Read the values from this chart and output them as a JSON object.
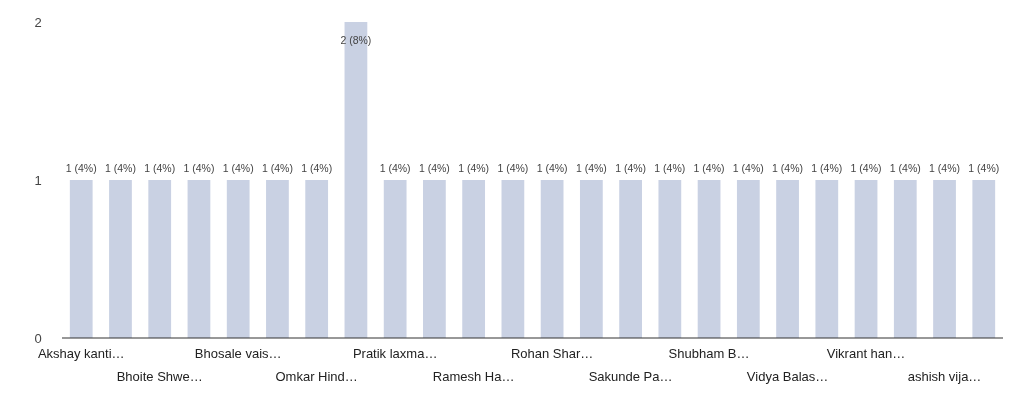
{
  "chart_data": {
    "type": "bar",
    "categories": [
      "Akshay kanti…",
      null,
      "Bhoite Shwe…",
      null,
      "Bhosale vais…",
      null,
      "Omkar Hind…",
      null,
      "Pratik laxma…",
      null,
      "Ramesh Ha…",
      null,
      "Rohan Shar…",
      null,
      "Sakunde Pa…",
      null,
      "Shubham B…",
      null,
      "Vidya Balas…",
      null,
      "Vikrant han…",
      null,
      "ashish vija…",
      null
    ],
    "values": [
      1,
      1,
      1,
      1,
      1,
      1,
      1,
      2,
      1,
      1,
      1,
      1,
      1,
      1,
      1,
      1,
      1,
      1,
      1,
      1,
      1,
      1,
      1,
      1
    ],
    "value_labels": [
      "1 (4%)",
      "1 (4%)",
      "1 (4%)",
      "1 (4%)",
      "1 (4%)",
      "1 (4%)",
      "1 (4%)",
      "2 (8%)",
      "1 (4%)",
      "1 (4%)",
      "1 (4%)",
      "1 (4%)",
      "1 (4%)",
      "1 (4%)",
      "1 (4%)",
      "1 (4%)",
      "1 (4%)",
      "1 (4%)",
      "1 (4%)",
      "1 (4%)",
      "1 (4%)",
      "1 (4%)",
      "1 (4%)",
      "1 (4%)"
    ],
    "color": "#c9d1e3",
    "ylim": [
      0,
      2
    ],
    "yticks": [
      0,
      1,
      2
    ],
    "grid": false
  }
}
